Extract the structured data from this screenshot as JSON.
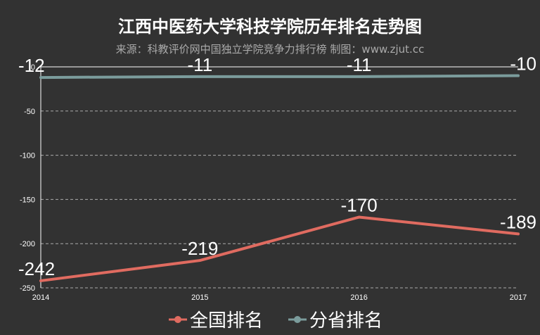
{
  "title": "江西中医药大学科技学院历年排名走势图",
  "subtitle": "来源：科教评价网中国独立学院竞争力排行榜 制图：www.zjut.cc",
  "chart_data": {
    "type": "line",
    "categories": [
      "2014",
      "2015",
      "2016",
      "2017"
    ],
    "series": [
      {
        "name": "全国排名",
        "values": [
          -242,
          -219,
          -170,
          -189
        ],
        "color": "#e06b60"
      },
      {
        "name": "分省排名",
        "values": [
          -12,
          -11,
          -11,
          -10
        ],
        "color": "#7b9c9c"
      }
    ],
    "data_labels": {
      "全国排名": [
        "-242",
        "-219",
        "-170",
        "-189"
      ],
      "分省排名": [
        "-12",
        "-11",
        "-11",
        "-10"
      ]
    },
    "ylim": [
      -250,
      0
    ],
    "yticks": [
      0,
      -50,
      -100,
      -150,
      -200,
      -250
    ],
    "ytick_labels": [
      "0",
      "-50",
      "-100",
      "-150",
      "-200",
      "-250"
    ],
    "grid": true,
    "legend_position": "bottom-center"
  },
  "colors": {
    "background": "#323232",
    "grid": "#aaaaaa",
    "axis": "#ffffff"
  }
}
